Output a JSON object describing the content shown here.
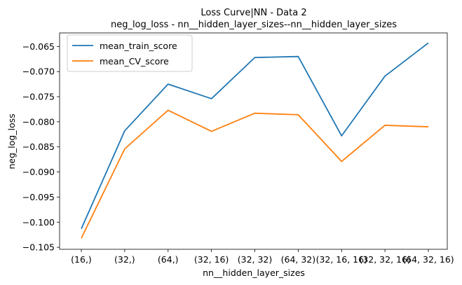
{
  "chart_data": {
    "type": "line",
    "title": "Loss Curve|NN - Data 2",
    "subtitle": "neg_log_loss - nn__hidden_layer_sizes--nn__hidden_layer_sizes",
    "xlabel": "nn__hidden_layer_sizes",
    "ylabel": "neg_log_loss",
    "categories": [
      "(16,)",
      "(32,)",
      "(64,)",
      "(32, 16)",
      "(32, 32)",
      "(64, 32)",
      "(32, 16, 16)",
      "(32, 32, 16)",
      "(64, 32, 16)"
    ],
    "ylim": [
      -0.1054,
      -0.0623
    ],
    "yticks": [
      -0.105,
      -0.1,
      -0.095,
      -0.09,
      -0.085,
      -0.08,
      -0.075,
      -0.07,
      -0.065
    ],
    "ytick_labels": [
      "−0.105",
      "−0.100",
      "−0.095",
      "−0.090",
      "−0.085",
      "−0.080",
      "−0.075",
      "−0.070",
      "−0.065"
    ],
    "grid": false,
    "legend_position": "top-left",
    "series": [
      {
        "name": "mean_train_score",
        "color": "#1f77b4",
        "values": [
          -0.1013,
          -0.0818,
          -0.0725,
          -0.0754,
          -0.0672,
          -0.067,
          -0.0828,
          -0.0709,
          -0.0643
        ]
      },
      {
        "name": "mean_CV_score",
        "color": "#ff7f0e",
        "values": [
          -0.1032,
          -0.0854,
          -0.0777,
          -0.0819,
          -0.0783,
          -0.0786,
          -0.0879,
          -0.0807,
          -0.081
        ]
      }
    ]
  }
}
